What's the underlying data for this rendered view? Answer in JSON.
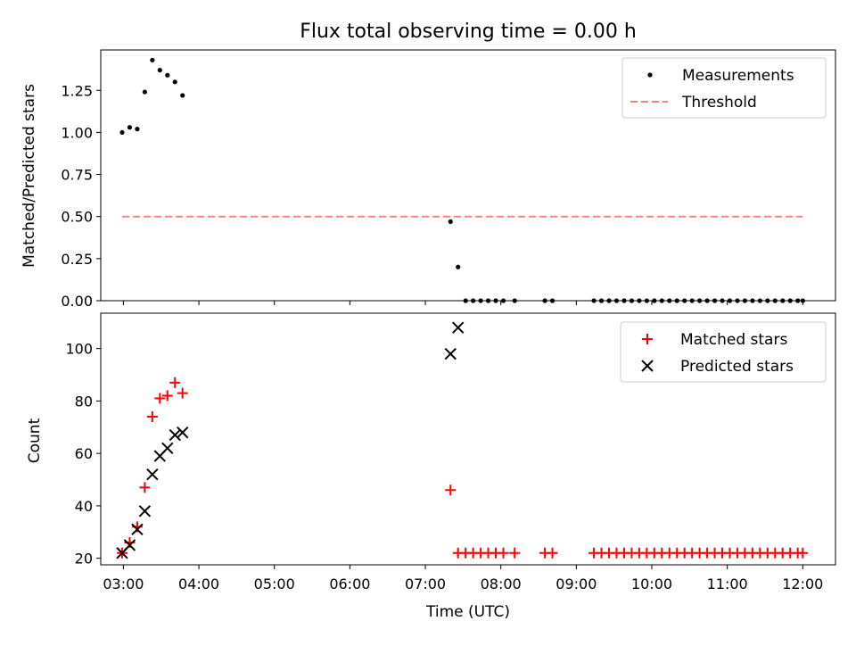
{
  "chart_data": [
    {
      "type": "scatter",
      "title": "Flux total observing time = 0.00 h",
      "xlabel": "",
      "ylabel": "Matched/Predicted stars",
      "xlim": [
        "02:42",
        "12:26"
      ],
      "ylim": [
        0,
        1.49
      ],
      "yticks": [
        "0.00",
        "0.25",
        "0.50",
        "0.75",
        "1.00",
        "1.25"
      ],
      "legend_location": "top-right",
      "series": [
        {
          "name": "Measurements",
          "marker": "dot",
          "color": "#000000",
          "x": [
            "02:59",
            "03:05",
            "03:11",
            "03:17",
            "03:23",
            "03:29",
            "03:35",
            "03:41",
            "03:47",
            "07:20",
            "07:26",
            "07:32",
            "07:38",
            "07:44",
            "07:50",
            "07:56",
            "08:02",
            "08:11",
            "08:35",
            "08:41",
            "09:14",
            "09:20",
            "09:26",
            "09:32",
            "09:38",
            "09:44",
            "09:50",
            "09:56",
            "10:02",
            "10:08",
            "10:14",
            "10:20",
            "10:26",
            "10:32",
            "10:38",
            "10:44",
            "10:50",
            "10:56",
            "11:02",
            "11:08",
            "11:14",
            "11:20",
            "11:26",
            "11:32",
            "11:38",
            "11:44",
            "11:50",
            "11:56",
            "12:00"
          ],
          "y": [
            1.0,
            1.03,
            1.02,
            1.24,
            1.43,
            1.37,
            1.34,
            1.3,
            1.22,
            0.47,
            0.2,
            0,
            0,
            0,
            0,
            0,
            0,
            0,
            0,
            0,
            0,
            0,
            0,
            0,
            0,
            0,
            0,
            0,
            0,
            0,
            0,
            0,
            0,
            0,
            0,
            0,
            0,
            0,
            0,
            0,
            0,
            0,
            0,
            0,
            0,
            0,
            0,
            0,
            0
          ]
        },
        {
          "name": "Threshold",
          "style": "dashed-line",
          "color": "#ff8080",
          "x": [
            "02:59",
            "12:00"
          ],
          "y": [
            0.5,
            0.5
          ]
        }
      ]
    },
    {
      "type": "scatter",
      "title": "",
      "xlabel": "Time (UTC)",
      "ylabel": "Count",
      "xlim": [
        "02:42",
        "12:26"
      ],
      "ylim": [
        17.5,
        113.5
      ],
      "yticks": [
        "20",
        "40",
        "60",
        "80",
        "100"
      ],
      "xticks": [
        "03:00",
        "04:00",
        "05:00",
        "06:00",
        "07:00",
        "08:00",
        "09:00",
        "10:00",
        "11:00",
        "12:00"
      ],
      "legend_location": "top-right",
      "series": [
        {
          "name": "Matched stars",
          "marker": "plus",
          "color": "#ff0000",
          "x": [
            "02:59",
            "03:05",
            "03:11",
            "03:17",
            "03:23",
            "03:29",
            "03:35",
            "03:41",
            "03:47",
            "07:20",
            "07:26",
            "07:32",
            "07:38",
            "07:44",
            "07:50",
            "07:56",
            "08:02",
            "08:11",
            "08:35",
            "08:41",
            "09:14",
            "09:20",
            "09:26",
            "09:32",
            "09:38",
            "09:44",
            "09:50",
            "09:56",
            "10:02",
            "10:08",
            "10:14",
            "10:20",
            "10:26",
            "10:32",
            "10:38",
            "10:44",
            "10:50",
            "10:56",
            "11:02",
            "11:08",
            "11:14",
            "11:20",
            "11:26",
            "11:32",
            "11:38",
            "11:44",
            "11:50",
            "11:56",
            "12:00"
          ],
          "y": [
            22,
            26,
            32,
            47,
            74,
            81,
            82,
            87,
            83,
            46,
            22,
            22,
            22,
            22,
            22,
            22,
            22,
            22,
            22,
            22,
            22,
            22,
            22,
            22,
            22,
            22,
            22,
            22,
            22,
            22,
            22,
            22,
            22,
            22,
            22,
            22,
            22,
            22,
            22,
            22,
            22,
            22,
            22,
            22,
            22,
            22,
            22,
            22,
            22
          ]
        },
        {
          "name": "Predicted stars",
          "marker": "x",
          "color": "#000000",
          "x": [
            "02:59",
            "03:05",
            "03:11",
            "03:17",
            "03:23",
            "03:29",
            "03:35",
            "03:41",
            "03:47",
            "07:20",
            "07:26"
          ],
          "y": [
            22,
            25,
            31,
            38,
            52,
            59,
            62,
            67,
            68,
            98,
            108
          ]
        }
      ]
    }
  ]
}
